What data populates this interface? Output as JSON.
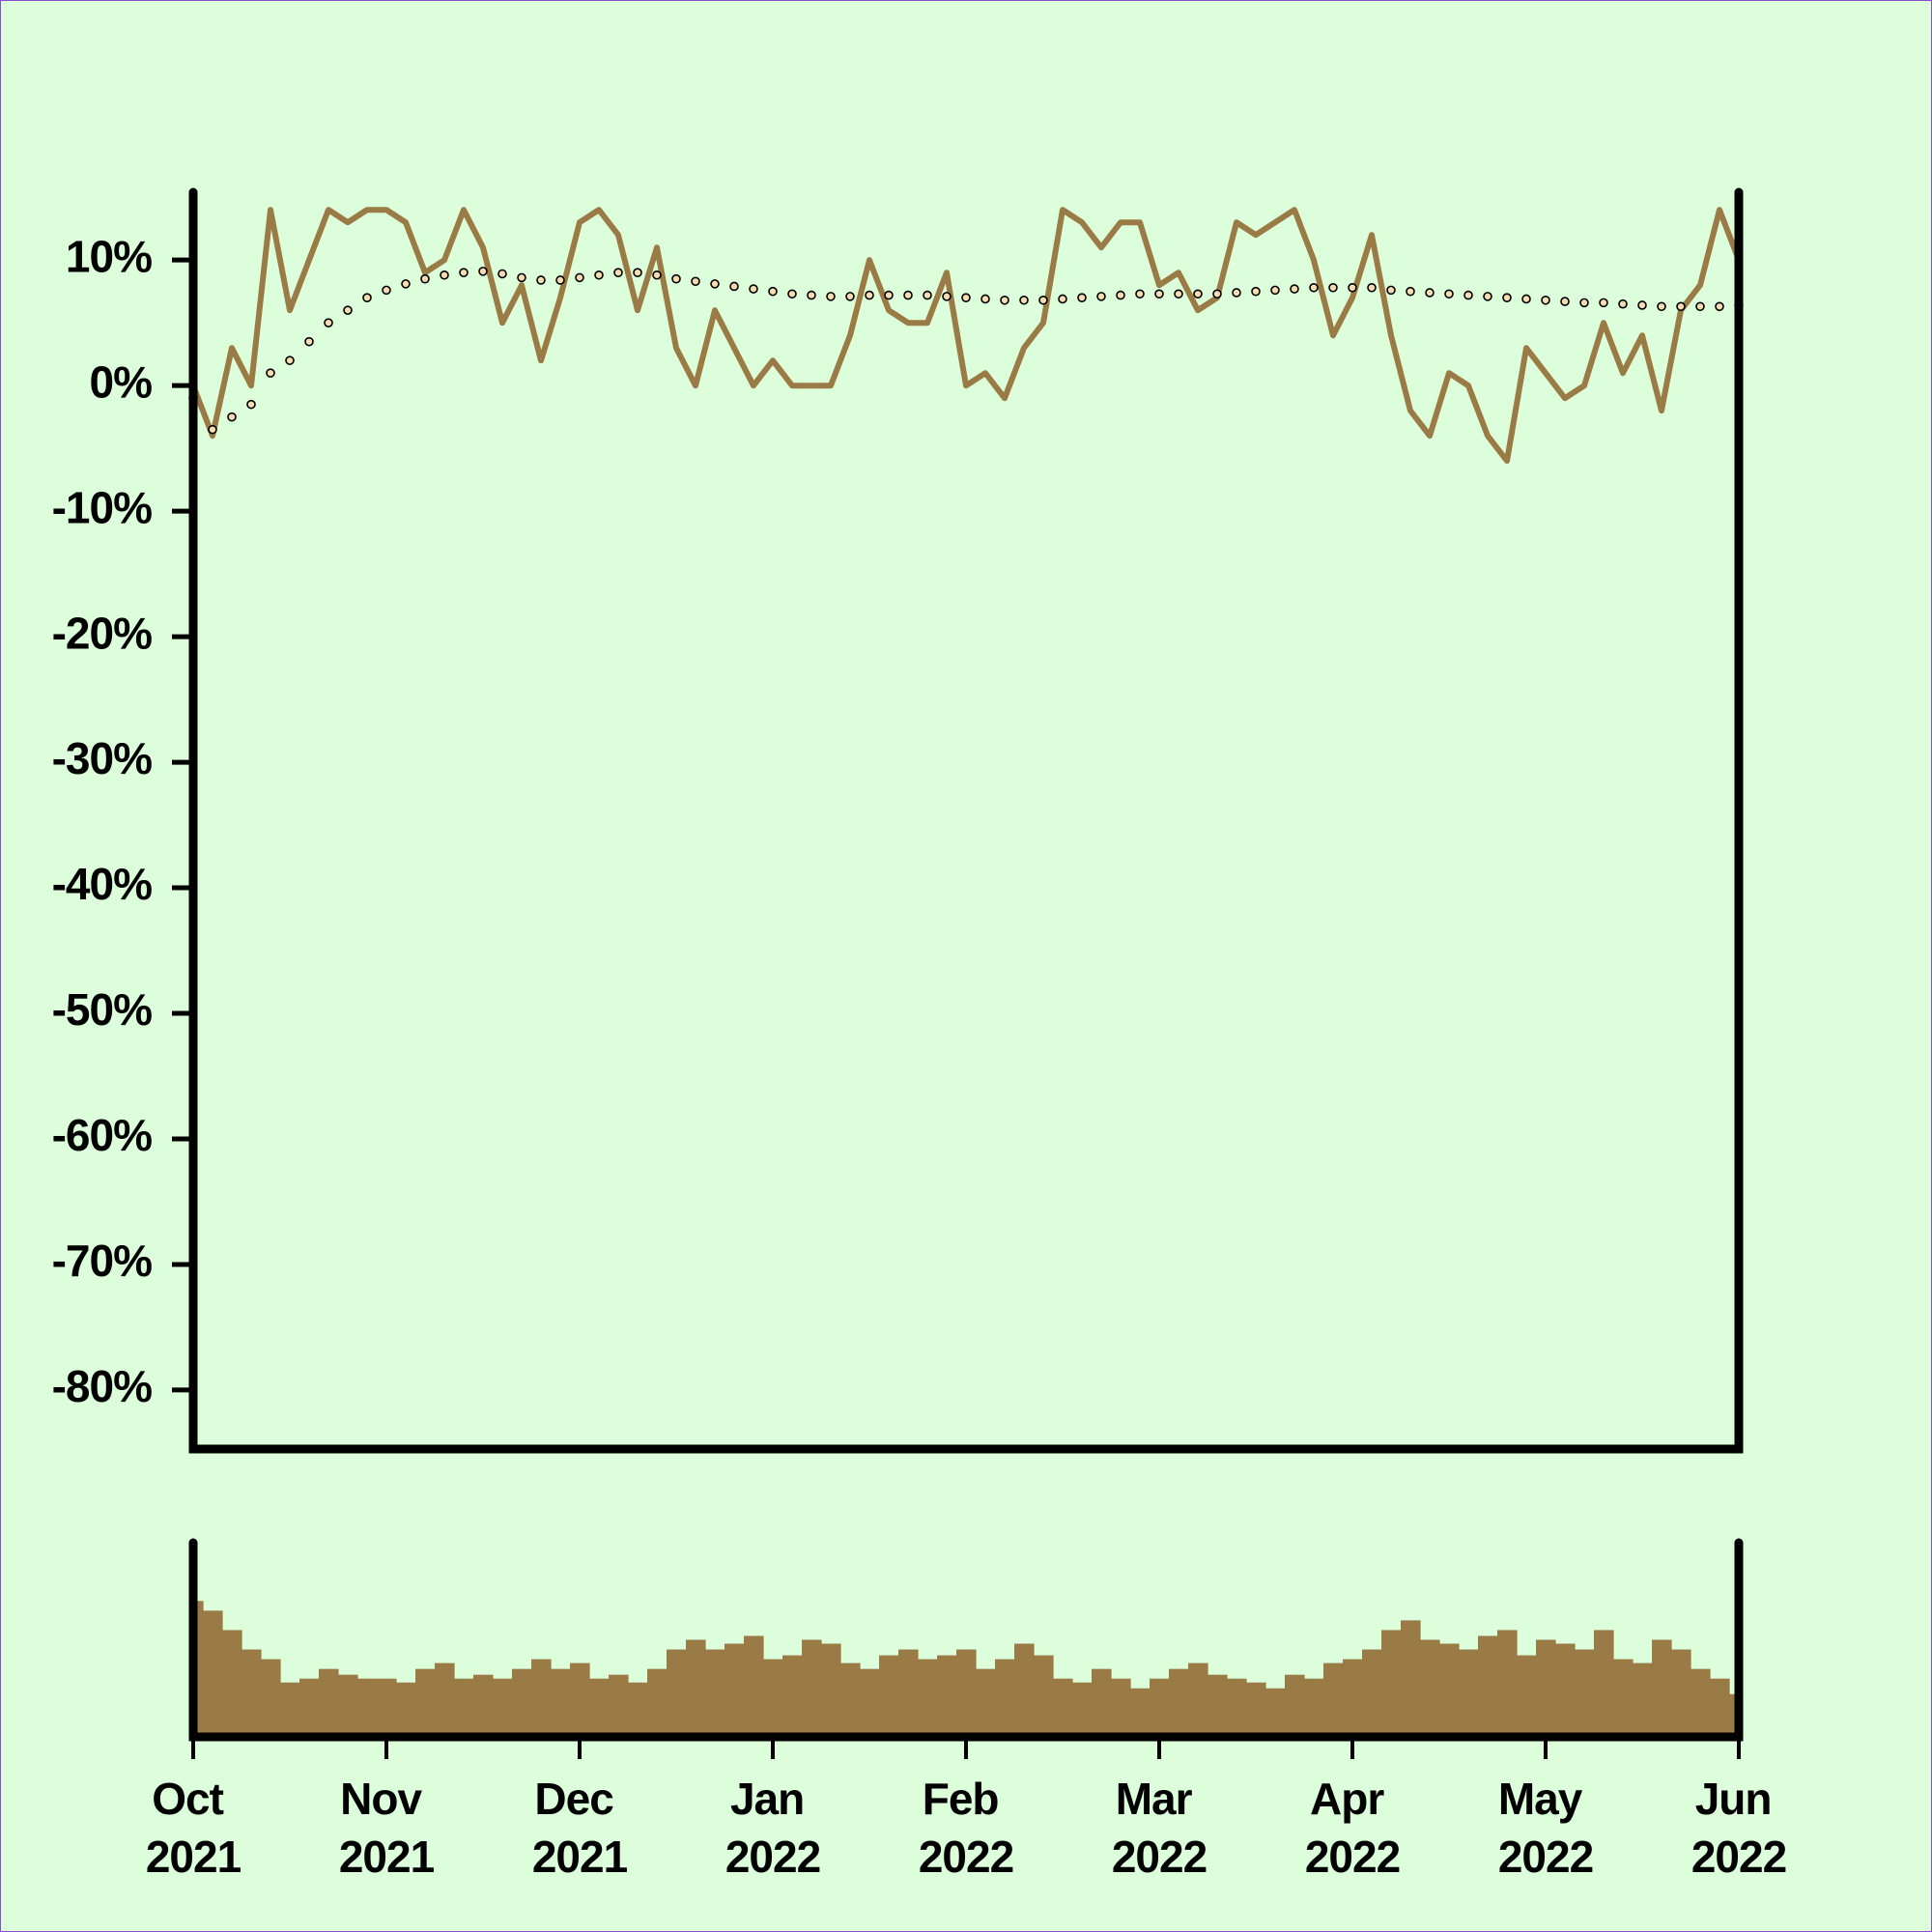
{
  "chart_data": [
    {
      "type": "line",
      "x": [
        0,
        1,
        2,
        3,
        4,
        5,
        6,
        7,
        8,
        9,
        10,
        11,
        12,
        13,
        14,
        15,
        16,
        17,
        18,
        19,
        20,
        21,
        22,
        23,
        24,
        25,
        26,
        27,
        28,
        29,
        30,
        31,
        32,
        33,
        34,
        35,
        36,
        37,
        38,
        39,
        40,
        41,
        42,
        43,
        44,
        45,
        46,
        47,
        48,
        49,
        50,
        51,
        52,
        53,
        54,
        55,
        56,
        57,
        58,
        59,
        60,
        61,
        62,
        63,
        64,
        65,
        66,
        67,
        68,
        69,
        70,
        71,
        72,
        73,
        74,
        75,
        76,
        77,
        78,
        79,
        80
      ],
      "xlim": [
        0,
        80
      ],
      "ylim": [
        -84.7,
        15.4
      ],
      "yticks": [
        {
          "value": -80,
          "label": "-80%"
        },
        {
          "value": -70,
          "label": "-70%"
        },
        {
          "value": -60,
          "label": "-60%"
        },
        {
          "value": -50,
          "label": "-50%"
        },
        {
          "value": -40,
          "label": "-40%"
        },
        {
          "value": -30,
          "label": "-30%"
        },
        {
          "value": -20,
          "label": "-20%"
        },
        {
          "value": -10,
          "label": "-10%"
        },
        {
          "value": 0,
          "label": "0%"
        },
        {
          "value": 10,
          "label": "10%"
        }
      ],
      "series": [
        {
          "style": "line",
          "color": "#9a7b46",
          "values": [
            0,
            -4,
            3,
            0,
            14,
            6,
            10,
            14,
            13,
            14,
            14,
            13,
            9,
            10,
            14,
            11,
            5,
            8,
            2,
            7,
            13,
            14,
            12,
            6,
            11,
            3,
            0,
            6,
            3,
            0,
            2,
            0,
            0,
            0,
            4,
            10,
            6,
            5,
            5,
            9,
            0,
            1,
            -1,
            3,
            5,
            14,
            13,
            11,
            13,
            13,
            8,
            9,
            6,
            7,
            13,
            12,
            13,
            14,
            10,
            4,
            7,
            12,
            4,
            -2,
            -4,
            1,
            0,
            -4,
            -6,
            3,
            1,
            -1,
            0,
            5,
            1,
            4,
            -2,
            6,
            8,
            14,
            10
          ]
        },
        {
          "style": "dots",
          "color": "#000000",
          "fill": "#f6dcae",
          "values": [
            -1,
            -3.5,
            -2.5,
            -1.5,
            1,
            2,
            3.5,
            5,
            6,
            7,
            7.6,
            8.1,
            8.5,
            8.8,
            9,
            9.1,
            8.9,
            8.6,
            8.4,
            8.4,
            8.6,
            8.8,
            9,
            9,
            8.8,
            8.5,
            8.3,
            8.1,
            7.9,
            7.7,
            7.5,
            7.3,
            7.2,
            7.1,
            7.1,
            7.2,
            7.2,
            7.2,
            7.2,
            7.1,
            7,
            6.9,
            6.8,
            6.8,
            6.8,
            6.9,
            7,
            7.1,
            7.2,
            7.3,
            7.3,
            7.3,
            7.3,
            7.3,
            7.4,
            7.5,
            7.6,
            7.7,
            7.8,
            7.8,
            7.8,
            7.8,
            7.6,
            7.5,
            7.4,
            7.3,
            7.2,
            7.1,
            7,
            6.9,
            6.8,
            6.7,
            6.6,
            6.6,
            6.5,
            6.4,
            6.3,
            6.3,
            6.3,
            6.3,
            6.4
          ]
        }
      ]
    },
    {
      "type": "bar",
      "x": [
        0,
        1,
        2,
        3,
        4,
        5,
        6,
        7,
        8,
        9,
        10,
        11,
        12,
        13,
        14,
        15,
        16,
        17,
        18,
        19,
        20,
        21,
        22,
        23,
        24,
        25,
        26,
        27,
        28,
        29,
        30,
        31,
        32,
        33,
        34,
        35,
        36,
        37,
        38,
        39,
        40,
        41,
        42,
        43,
        44,
        45,
        46,
        47,
        48,
        49,
        50,
        51,
        52,
        53,
        54,
        55,
        56,
        57,
        58,
        59,
        60,
        61,
        62,
        63,
        64,
        65,
        66,
        67,
        68,
        69,
        70,
        71,
        72,
        73,
        74,
        75,
        76,
        77,
        78,
        79,
        80
      ],
      "xlim": [
        0,
        80
      ],
      "ylim": [
        0,
        100
      ],
      "color": "#9a7b46",
      "values": [
        70,
        65,
        55,
        45,
        40,
        28,
        30,
        35,
        32,
        30,
        30,
        28,
        35,
        38,
        30,
        32,
        30,
        35,
        40,
        35,
        38,
        30,
        32,
        28,
        35,
        45,
        50,
        45,
        48,
        52,
        40,
        42,
        50,
        48,
        38,
        35,
        42,
        45,
        40,
        42,
        45,
        35,
        40,
        48,
        42,
        30,
        28,
        35,
        30,
        25,
        30,
        35,
        38,
        32,
        30,
        28,
        25,
        32,
        30,
        38,
        40,
        45,
        55,
        60,
        50,
        48,
        45,
        52,
        55,
        42,
        50,
        48,
        45,
        55,
        40,
        38,
        50,
        45,
        35,
        30,
        22
      ],
      "xticks": [
        {
          "value": 0,
          "label": "Oct 2021"
        },
        {
          "value": 10,
          "label": "Nov 2021"
        },
        {
          "value": 20,
          "label": "Dec 2021"
        },
        {
          "value": 30,
          "label": "Jan 2022"
        },
        {
          "value": 40,
          "label": "Feb 2022"
        },
        {
          "value": 50,
          "label": "Mar 2022"
        },
        {
          "value": 60,
          "label": "Apr 2022"
        },
        {
          "value": 70,
          "label": "May 2022"
        },
        {
          "value": 80,
          "label": "Jun 2022"
        }
      ]
    }
  ]
}
